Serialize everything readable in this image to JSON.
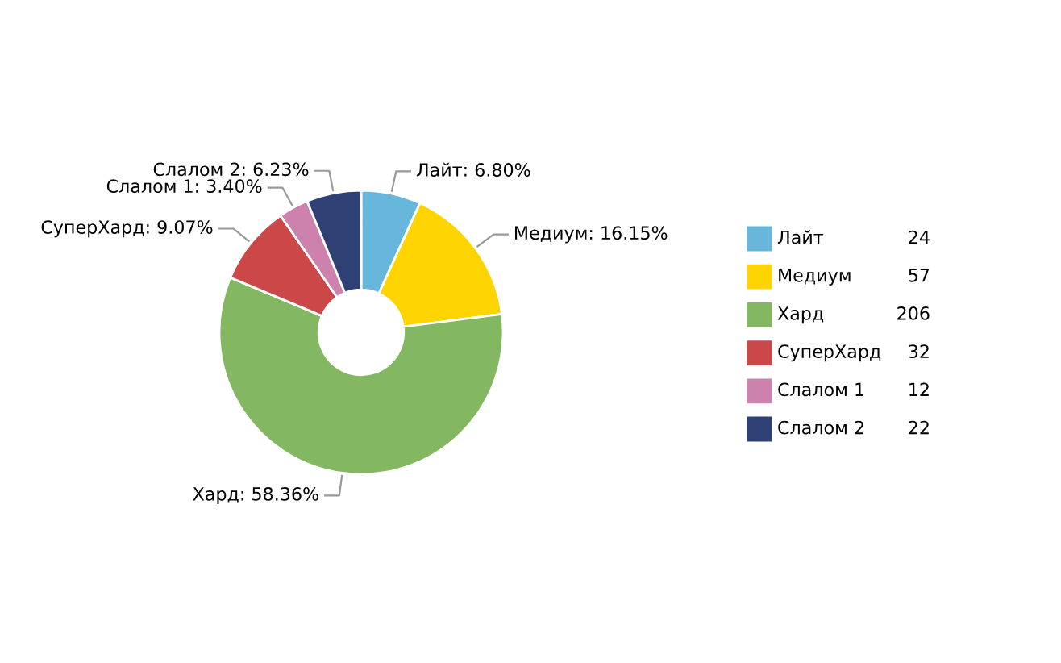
{
  "chart_data": {
    "type": "donut",
    "categories": [
      "Лайт",
      "Медиум",
      "Хард",
      "СуперХард",
      "Слалом 1",
      "Слалом 2"
    ],
    "values": [
      6.8,
      16.15,
      58.36,
      9.07,
      3.4,
      6.23
    ],
    "value_labels": [
      "Лайт: 6.80%",
      "Медиум: 16.15%",
      "Хард: 58.36%",
      "СуперХард: 9.07%",
      "Слалом 1: 3.40%",
      "Слалом 2: 6.23%"
    ],
    "annotations": [
      "24",
      "57",
      "206",
      "32",
      "12",
      "22"
    ],
    "colors": [
      "#67b7dc",
      "#fdd400",
      "#84b761",
      "#cc4748",
      "#cd82ad",
      "#2f4074"
    ],
    "legend": "right"
  }
}
